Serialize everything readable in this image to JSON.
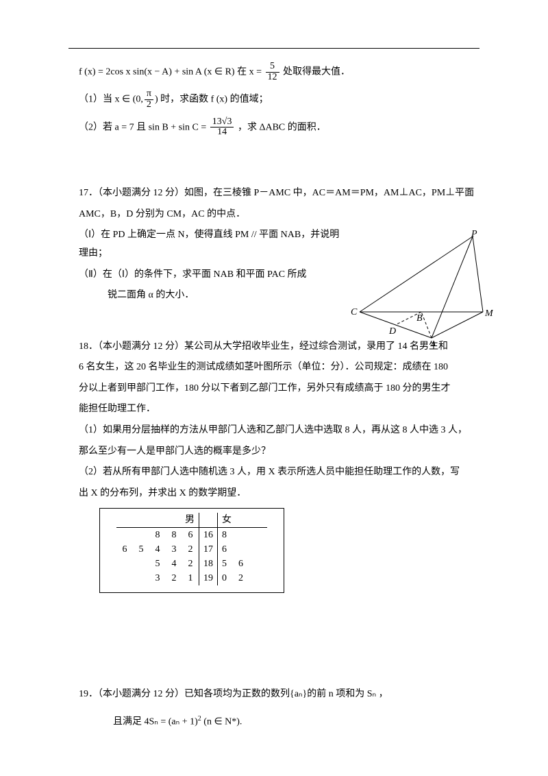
{
  "q16": {
    "func": "f (x) = 2cos x sin(x − A) + sin A (x ∈ R)",
    "at_text_1": "在",
    "at_eq_pre": "x =",
    "frac_num": "5",
    "frac_den": "12",
    "at_text_2": "处取得最大值．",
    "p1_pre": "（1）当",
    "p1_cond_pre": "x ∈ (0,",
    "p1_frac_num": "π",
    "p1_frac_den": "2",
    "p1_cond_post": ") 时，求函数 f (x) 的值域；",
    "p2_pre": "（2）若 a = 7 且 sin B + sin C =",
    "p2_frac_num": "13√3",
    "p2_frac_den": "14",
    "p2_post": "，求 ΔABC 的面积．"
  },
  "q17": {
    "title": "17．（本小题满分 12 分）如图，在三棱锥 P－AMC 中，AC＝AM＝PM，AM⊥AC，PM⊥平面",
    "l2": "AMC，B，D 分别为 CM，AC 的中点．",
    "l3": "（Ⅰ）在 PD 上确定一点 N，使得直线 PM // 平面 NAB，并说明理由；",
    "l4": "（Ⅱ）在（Ⅰ）的条件下，求平面 NAB 和平面 PAC 所成",
    "l5": "　　　锐二面角 α 的大小．",
    "labels": {
      "P": "P",
      "C": "C",
      "M": "M",
      "A": "A",
      "B": "B",
      "D": "D"
    }
  },
  "q18": {
    "l1": "18．（本小题满分 12 分）某公司从大学招收毕业生，经过综合测试，录用了 14 名男生和",
    "l2": "6 名女生，这 20 名毕业生的测试成绩如茎叶图所示（单位：分）．公司规定：成绩在 180",
    "l3": "分以上者到甲部门工作，180 分以下者到乙部门工作，另外只有成绩高于 180 分的男生才",
    "l4": "能担任助理工作．",
    "l5": "（1）如果用分层抽样的方法从甲部门人选和乙部门人选中选取 8 人，再从这 8 人中选 3 人，",
    "l6": "那么至少有一人是甲部门人选的概率是多少？",
    "l7": "（2）若从所有甲部门人选中随机选 3 人，用 X 表示所选人员中能担任助理工作的人数，写",
    "l8": "出 X 的分布列，并求出 X 的数学期望．",
    "table": {
      "hdr_m": "男",
      "hdr_f": "女",
      "rows": [
        {
          "left": [
            "",
            "",
            "8",
            "8",
            "6"
          ],
          "stem": "16",
          "right": [
            "8",
            "",
            ""
          ]
        },
        {
          "left": [
            "6",
            "5",
            "4",
            "3",
            "2"
          ],
          "stem": "17",
          "right": [
            "6",
            "",
            ""
          ]
        },
        {
          "left": [
            "",
            "",
            "5",
            "4",
            "2"
          ],
          "stem": "18",
          "right": [
            "5",
            "6",
            ""
          ]
        },
        {
          "left": [
            "",
            "",
            "3",
            "2",
            "1"
          ],
          "stem": "19",
          "right": [
            "0",
            "2",
            ""
          ]
        }
      ]
    }
  },
  "q19": {
    "l1_pre": "19．（本小题满分 12 分）已知各项均为正数的数列",
    "l1_mid": "{aₙ}",
    "l1_post": "的前 n 项和为 Sₙ ，",
    "l2_pre": "且满足 4Sₙ = (aₙ + 1)",
    "l2_exp": "2",
    "l2_post": " (n ∈ N*)."
  }
}
